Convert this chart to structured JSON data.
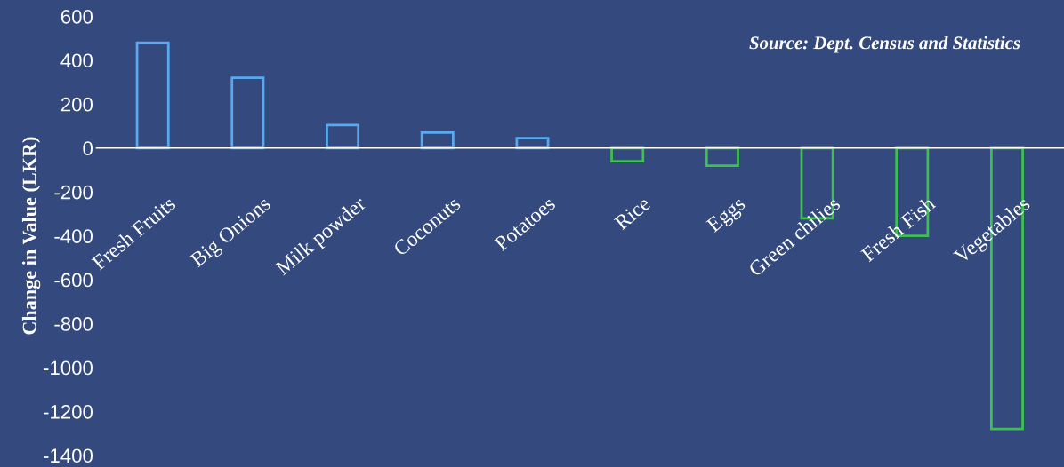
{
  "chart_data": {
    "type": "bar",
    "ylabel": "Change in Value (LKR)",
    "categories": [
      "Fresh Fruits",
      "Big Onions",
      "Milk powder",
      "Coconuts",
      "Potatoes",
      "Rice",
      "Eggs",
      "Green chilies",
      "Fresh Fish",
      "Vegetables"
    ],
    "values": [
      480,
      320,
      105,
      70,
      45,
      -60,
      -80,
      -320,
      -400,
      -1280
    ],
    "colors": [
      "#5aa8f0",
      "#5aa8f0",
      "#5aa8f0",
      "#5aa8f0",
      "#5aa8f0",
      "#3cc050",
      "#3cc050",
      "#3cc050",
      "#3cc050",
      "#3cc050"
    ],
    "ylim": [
      -1400,
      600
    ],
    "yticks": [
      -1400,
      -1200,
      -1000,
      -800,
      -600,
      -400,
      -200,
      0,
      200,
      400,
      600
    ],
    "grid": false,
    "annotations": [
      "Source: Dept. Census and Statistics"
    ]
  }
}
